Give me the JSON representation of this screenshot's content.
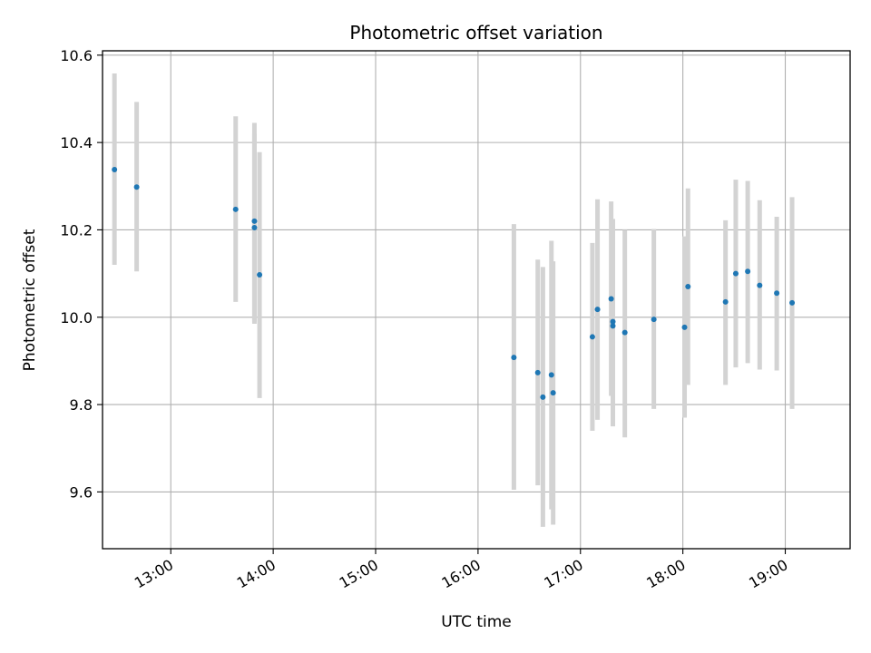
{
  "chart_data": {
    "type": "scatter",
    "title": "Photometric offset variation",
    "xlabel": "UTC time",
    "ylabel": "Photometric offset",
    "xlim": [
      "12:20",
      "19:38"
    ],
    "ylim": [
      9.47,
      10.61
    ],
    "grid": true,
    "x_ticks": [
      "13:00",
      "14:00",
      "15:00",
      "16:00",
      "17:00",
      "18:00",
      "19:00"
    ],
    "y_ticks": [
      "9.6",
      "9.8",
      "10.0",
      "10.2",
      "10.4",
      "10.6"
    ],
    "point_color": "#1f77b4",
    "errorbar_color": "#d3d3d3",
    "points": [
      {
        "x": "12:27",
        "y": 10.338,
        "lo": 10.12,
        "hi": 10.558
      },
      {
        "x": "12:40",
        "y": 10.298,
        "lo": 10.105,
        "hi": 10.493
      },
      {
        "x": "13:38",
        "y": 10.247,
        "lo": 10.035,
        "hi": 10.46
      },
      {
        "x": "13:49",
        "y": 10.22,
        "lo": 9.985,
        "hi": 10.445
      },
      {
        "x": "13:49",
        "y": 10.205,
        "lo": 9.99,
        "hi": 10.42
      },
      {
        "x": "13:52",
        "y": 10.097,
        "lo": 9.815,
        "hi": 10.378
      },
      {
        "x": "16:21",
        "y": 9.908,
        "lo": 9.605,
        "hi": 10.213
      },
      {
        "x": "16:35",
        "y": 9.873,
        "lo": 9.615,
        "hi": 10.132
      },
      {
        "x": "16:38",
        "y": 9.817,
        "lo": 9.52,
        "hi": 10.115
      },
      {
        "x": "16:43",
        "y": 9.868,
        "lo": 9.56,
        "hi": 10.175
      },
      {
        "x": "16:44",
        "y": 9.827,
        "lo": 9.525,
        "hi": 10.128
      },
      {
        "x": "17:07",
        "y": 9.955,
        "lo": 9.74,
        "hi": 10.17
      },
      {
        "x": "17:10",
        "y": 10.018,
        "lo": 9.765,
        "hi": 10.27
      },
      {
        "x": "17:18",
        "y": 10.042,
        "lo": 9.82,
        "hi": 10.265
      },
      {
        "x": "17:19",
        "y": 9.98,
        "lo": 9.75,
        "hi": 10.225
      },
      {
        "x": "17:19",
        "y": 9.99,
        "lo": 9.76,
        "hi": 10.205
      },
      {
        "x": "17:26",
        "y": 9.965,
        "lo": 9.725,
        "hi": 10.2
      },
      {
        "x": "17:43",
        "y": 9.995,
        "lo": 9.79,
        "hi": 10.202
      },
      {
        "x": "18:01",
        "y": 9.977,
        "lo": 9.77,
        "hi": 10.185
      },
      {
        "x": "18:03",
        "y": 10.07,
        "lo": 9.845,
        "hi": 10.295
      },
      {
        "x": "18:25",
        "y": 10.035,
        "lo": 9.845,
        "hi": 10.222
      },
      {
        "x": "18:31",
        "y": 10.1,
        "lo": 9.885,
        "hi": 10.315
      },
      {
        "x": "18:38",
        "y": 10.105,
        "lo": 9.895,
        "hi": 10.312
      },
      {
        "x": "18:45",
        "y": 10.073,
        "lo": 9.88,
        "hi": 10.268
      },
      {
        "x": "18:55",
        "y": 10.055,
        "lo": 9.878,
        "hi": 10.23
      },
      {
        "x": "19:04",
        "y": 10.033,
        "lo": 9.79,
        "hi": 10.275
      }
    ]
  }
}
